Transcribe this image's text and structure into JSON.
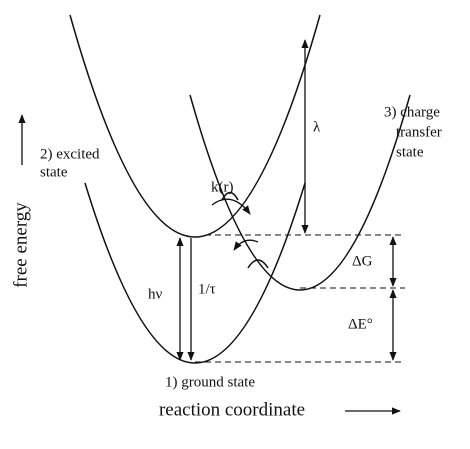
{
  "axes": {
    "y_label": "free energy",
    "x_label": "reaction coordinate"
  },
  "states": {
    "ground": {
      "label": "1) ground state"
    },
    "excited": {
      "label_lines": [
        "2) excited",
        "state"
      ]
    },
    "charge_transfer": {
      "label_lines": [
        "3) charge",
        "transfer",
        "state"
      ]
    }
  },
  "annotations": {
    "lambda": "λ",
    "k_r": "k(r)",
    "h_nu": "hν",
    "tau": "1/τ",
    "delta_g": "ΔG",
    "delta_e": "ΔE°"
  }
}
